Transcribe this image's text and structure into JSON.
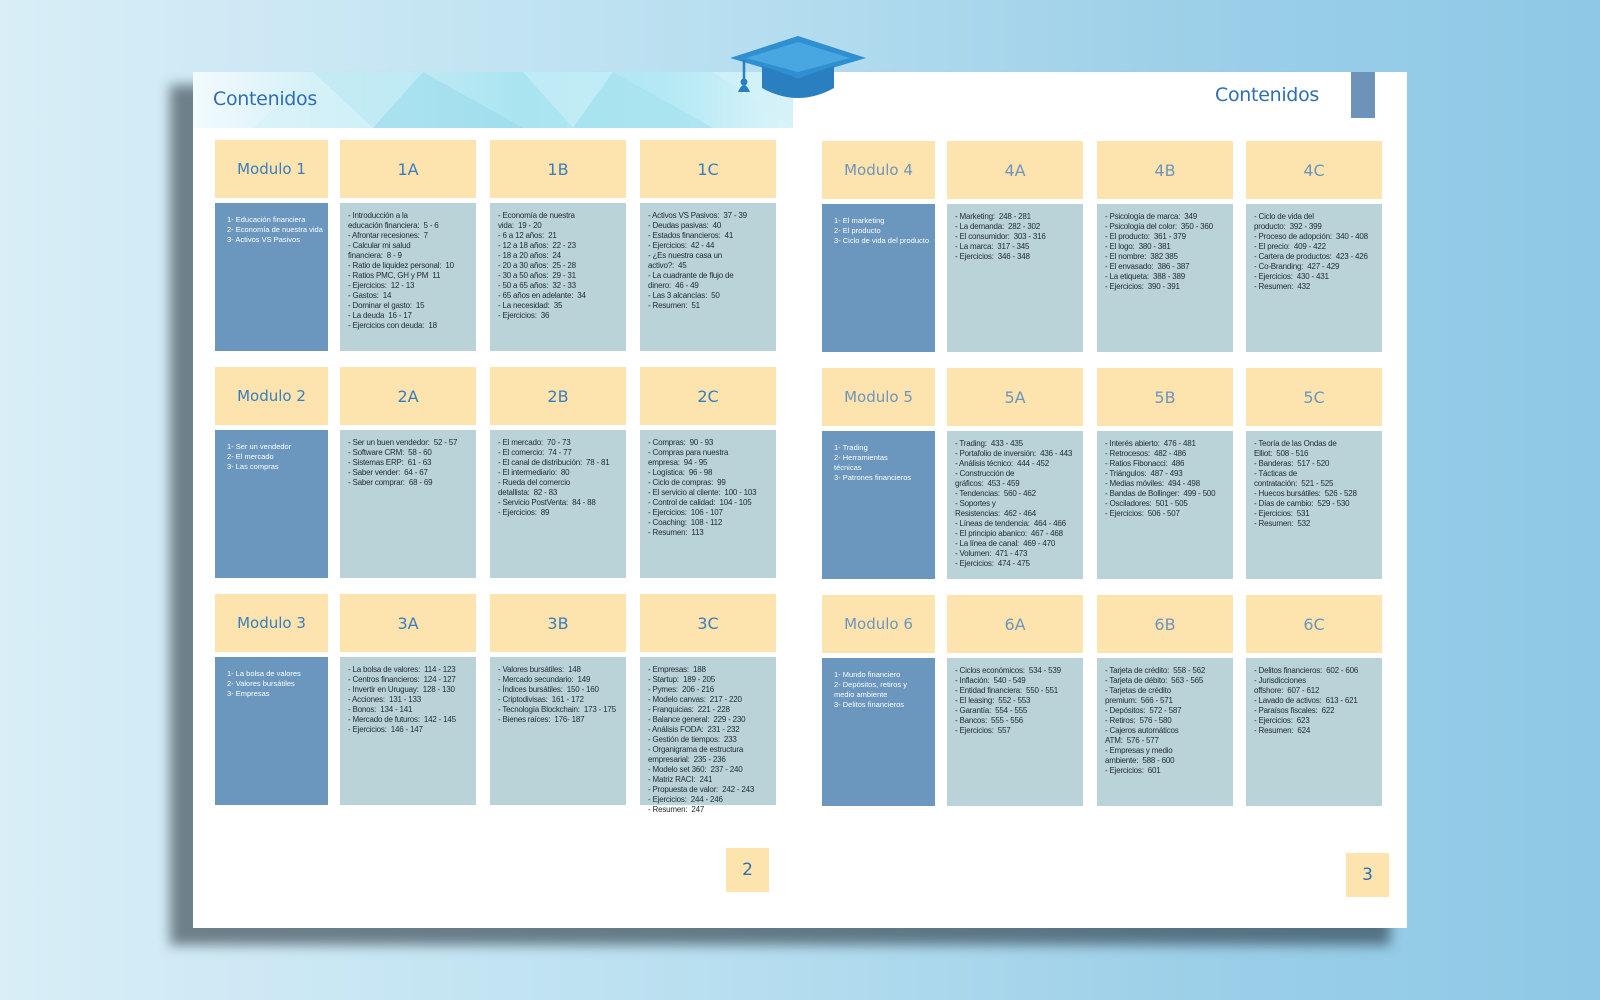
{
  "left_page": {
    "title": "Contenidos",
    "page_number": "2",
    "modules": [
      {
        "label": "Modulo 1",
        "topics": [
          "1- Educación financiera",
          "2- Economía de nuestra vida",
          "3- Activos VS Pasivos"
        ],
        "subs": [
          {
            "label": "1A",
            "items": [
              "- Introducción a la",
              "educación financiera:  5 - 6",
              "- Afrontar recesiones:  7",
              "- Calcular mi salud",
              "financiera:  8 - 9",
              "- Ratio de liquidez personal:  10",
              "- Ratios PMC, GH y PM  11",
              "- Ejercicios:  12 - 13",
              "- Gastos:  14",
              "- Dominar el gasto:  15",
              "- La deuda  16 - 17",
              "- Ejercicios con deuda:  18"
            ]
          },
          {
            "label": "1B",
            "items": [
              "- Economía de nuestra",
              "vida:  19 - 20",
              "- 6 a 12 años:  21",
              "- 12 a 18 años:  22 - 23",
              "- 18 a 20 años:  24",
              "- 20 a 30 años:  25 - 28",
              "- 30 a 50 años:  29 - 31",
              "- 50 a 65 años:  32 - 33",
              "- 65 años en adelante:  34",
              "- La necesidad:  35",
              "- Ejercicios:  36"
            ]
          },
          {
            "label": "1C",
            "items": [
              "- Activos VS Pasivos:  37 - 39",
              "- Deudas pasivas:  40",
              "- Estados financieros:  41",
              "- Ejercicios:  42 - 44",
              "- ¿Es nuestra casa un",
              "activo?:  45",
              "- La cuadrante de flujo de",
              "dinero:  46 - 49",
              "- Las 3 alcancías:  50",
              "- Resumen:  51"
            ]
          }
        ]
      },
      {
        "label": "Modulo 2",
        "topics": [
          "1- Ser un vendedor",
          "2- El mercado",
          "3- Las compras"
        ],
        "subs": [
          {
            "label": "2A",
            "items": [
              "- Ser un buen vendedor:  52 - 57",
              "- Software CRM:  58 - 60",
              "- Sistemas ERP:  61 - 63",
              "- Saber vender:  64 - 67",
              "- Saber comprar:  68 - 69"
            ]
          },
          {
            "label": "2B",
            "items": [
              "- El mercado:  70 - 73",
              "- El comercio:  74 - 77",
              "- El canal de distribución:  78 - 81",
              "- El intermediario:  80",
              "- Rueda del comercio",
              "detallista:  82 - 83",
              "- Servicio PostVenta:  84 - 88",
              "- Ejercicios:  89"
            ]
          },
          {
            "label": "2C",
            "items": [
              "- Compras:  90 - 93",
              "- Compras para nuestra",
              "empresa:  94 - 95",
              "- Logística:  96 - 98",
              "- Ciclo de compras:  99",
              "- El servicio al cliente:  100 - 103",
              "- Control de calidad:  104 - 105",
              "- Ejercicios:  106 - 107",
              "- Coaching:  108 - 112",
              "- Resumen:  113"
            ]
          }
        ]
      },
      {
        "label": "Modulo 3",
        "topics": [
          "1- La bolsa de valores",
          "2- Valores bursátiles",
          "3- Empresas"
        ],
        "subs": [
          {
            "label": "3A",
            "items": [
              "- La bolsa de valores:  114 - 123",
              "- Centros financieros:  124 - 127",
              "- Invertir en Uruguay:  128 - 130",
              "- Acciones:  131 - 133",
              "- Bonos:  134 - 141",
              "- Mercado de futuros:  142 - 145",
              "- Ejercicios:  146 - 147"
            ]
          },
          {
            "label": "3B",
            "items": [
              "- Valores bursátiles:  148",
              "- Mercado secundario:  149",
              "- Índices bursátiles:  150 - 160",
              "- Criptodivisas:  161 - 172",
              "- Tecnología Blockchain:  173 - 175",
              "- Bienes raíces:  176- 187"
            ]
          },
          {
            "label": "3C",
            "items": [
              "- Empresas:  188",
              "- Startup:  189 - 205",
              "- Pymes:  206 - 216",
              "- Modelo canvas:  217 - 220",
              "- Franquicias:  221 - 228",
              "- Balance general:  229 - 230",
              "- Análisis FODA:  231 - 232",
              "- Gestión de tiempos:  233",
              "- Organigrama de estructura",
              "empresarial:  235 - 236",
              "- Modelo set 360:  237 - 240",
              "- Matriz RACI:  241",
              "- Propuesta de valor:  242 - 243",
              "- Ejercicios:  244 - 246",
              "- Resumen:  247"
            ]
          }
        ]
      }
    ]
  },
  "right_page": {
    "title": "Contenidos",
    "page_number": "3",
    "modules": [
      {
        "label": "Modulo 4",
        "topics": [
          "1- El marketing",
          "2- El producto",
          "3- Ciclo de vida del producto"
        ],
        "subs": [
          {
            "label": "4A",
            "items": [
              "- Marketing:  248 - 281",
              "- La demanda:  282 - 302",
              "- El consumidor:  303 - 316",
              "- La marca:  317 - 345",
              "- Ejercicios:  346 - 348"
            ]
          },
          {
            "label": "4B",
            "items": [
              "- Psicología de marca:  349",
              "- Psicología del color:  350 - 360",
              "- El producto:  361 - 379",
              "- El logo:  380 - 381",
              "- El nombre:  382 385",
              "- El envasado:  386 - 387",
              "- La etiqueta:  388 - 389",
              "- Ejercicios:  390 - 391"
            ]
          },
          {
            "label": "4C",
            "items": [
              "- Ciclo de vida del",
              "producto:  392 - 399",
              "- Proceso de adopción:  340 - 408",
              "- El precio:  409 - 422",
              "- Cartera de productos:  423 - 426",
              "- Co-Branding:  427 - 429",
              "- Ejercicios:  430 - 431",
              "- Resumen:  432"
            ]
          }
        ]
      },
      {
        "label": "Modulo 5",
        "topics": [
          "1- Trading",
          "2- Herramientas",
          "técnicas",
          "3- Patrones financieros"
        ],
        "subs": [
          {
            "label": "5A",
            "items": [
              "- Trading:  433 - 435",
              "- Portafolio de inversión:  436 - 443",
              "- Análisis técnico:  444 - 452",
              "- Construcción de",
              "gráficos:  453 - 459",
              "- Tendencias:  560 - 462",
              "- Soportes y",
              "Resistencias:  462 - 464",
              "- Líneas de tendencia:  464 - 466",
              "- El principio abanico:  467 - 468",
              "- La línea de canal:  469 - 470",
              "- Volumen:  471 - 473",
              "- Ejercicios:  474 - 475"
            ]
          },
          {
            "label": "5B",
            "items": [
              "- Interés abierto:  476 - 481",
              "- Retrocesos:  482 - 486",
              "- Ratios Fibonacci:  486",
              "- Triángulos:  487 - 493",
              "- Medias móviles:  494 - 498",
              "- Bandas de Bollinger:  499 - 500",
              "- Osciladores:  501 - 505",
              "- Ejercicios:  506 - 507"
            ]
          },
          {
            "label": "5C",
            "items": [
              "- Teoría de las Ondas de",
              "Elliot:  508 - 516",
              "- Banderas:  517 - 520",
              "- Tácticas de",
              "contratación:  521 - 525",
              "- Huecos bursátiles:  526 - 528",
              "- Días de cambio:  529 - 530",
              "- Ejercicios:  531",
              "- Resumen:  532"
            ]
          }
        ]
      },
      {
        "label": "Modulo 6",
        "topics": [
          "1- Mundo financiero",
          "2- Depósitos, retiros y",
          "medio ambiente",
          "3- Delitos financieros"
        ],
        "subs": [
          {
            "label": "6A",
            "items": [
              "- Ciclos económicos:  534 - 539",
              "- Inflación:  540 - 549",
              "- Entidad financiera:  550 - 551",
              "- El leasing:  552 - 553",
              "- Garantía:  554 - 555",
              "- Bancos:  555 - 556",
              "- Ejercicios:  557"
            ]
          },
          {
            "label": "6B",
            "items": [
              "- Tarjeta de crédito:  558 - 562",
              "- Tarjeta de débito:  563 - 565",
              "- Tarjetas de crédito",
              "premium:  566 - 571",
              "- Depósitos:  572 - 587",
              "- Retiros:  576 - 580",
              "- Cajeros automáticos",
              "ATM:  576 - 577",
              "- Empresas y medio",
              "ambiente:  588 - 600",
              "- Ejercicios:  601"
            ]
          },
          {
            "label": "6C",
            "items": [
              "- Delitos financieros:  602 - 606",
              "- Jurisdicciones",
              "offshore:  607 - 612",
              "- Lavado de activos:  613 - 621",
              "- Paraísos fiscales:  622",
              "- Ejercicios:  623",
              "- Resumen:  624"
            ]
          }
        ]
      }
    ]
  },
  "colors": {
    "header_bg": "#fde3ad",
    "module_body_bg": "#6b96bd",
    "sub_body_bg": "#bad3d9",
    "title_color": "#2f6fb0"
  },
  "icons": {
    "top_center": "graduation-cap-icon"
  }
}
